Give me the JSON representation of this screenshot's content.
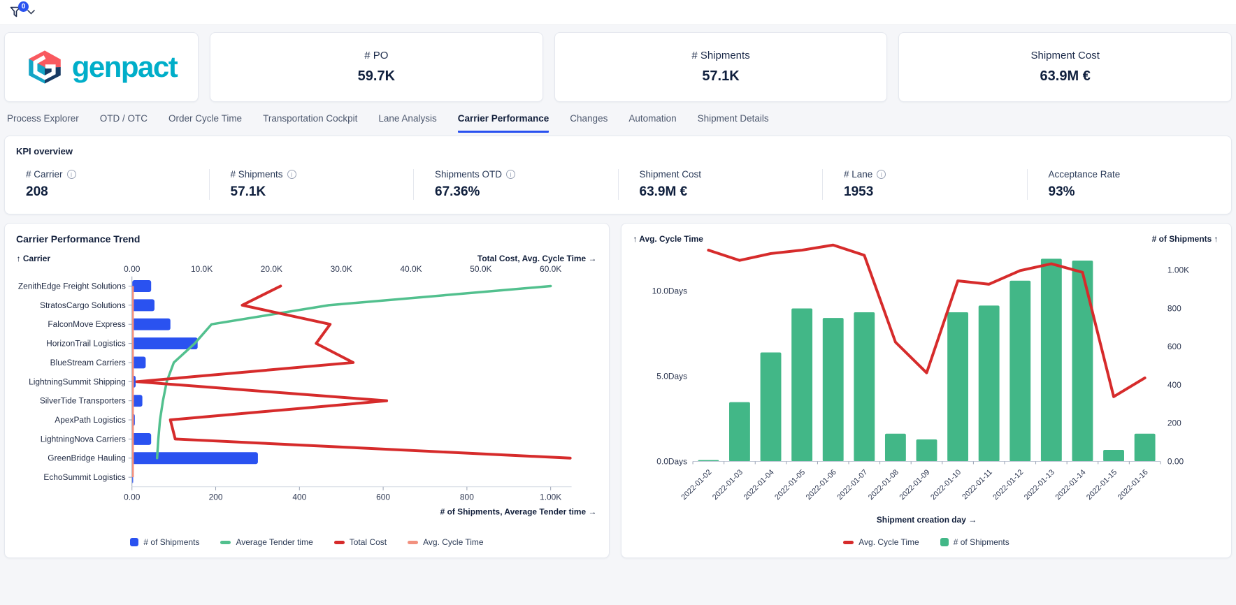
{
  "topbar": {
    "filter_count": "0"
  },
  "brand": {
    "wordmark": "genpact"
  },
  "summary_cards": [
    {
      "label": "# PO",
      "value": "59.7K"
    },
    {
      "label": "# Shipments",
      "value": "57.1K"
    },
    {
      "label": "Shipment Cost",
      "value": "63.9M €"
    }
  ],
  "tabs": {
    "items": [
      "Process Explorer",
      "OTD / OTC",
      "Order Cycle Time",
      "Transportation Cockpit",
      "Lane Analysis",
      "Carrier Performance",
      "Changes",
      "Automation",
      "Shipment Details"
    ],
    "active_index": 5
  },
  "kpi_overview": {
    "title": "KPI overview",
    "items": [
      {
        "label": "# Carrier",
        "value": "208",
        "info": true
      },
      {
        "label": "# Shipments",
        "value": "57.1K",
        "info": true
      },
      {
        "label": "Shipments OTD",
        "value": "67.36%",
        "info": true
      },
      {
        "label": "Shipment Cost",
        "value": "63.9M €",
        "info": false
      },
      {
        "label": "# Lane",
        "value": "1953",
        "info": true
      },
      {
        "label": "Acceptance Rate",
        "value": "93%",
        "info": false
      }
    ]
  },
  "chart_data": [
    {
      "type": "bar",
      "orientation": "horizontal",
      "title": "Carrier Performance Trend",
      "y_axis_title": "↑ Carrier",
      "top_axis_title": "Total Cost, Avg. Cycle Time →",
      "bottom_axis_title": "# of Shipments, Average Tender time →",
      "categories": [
        "ZenithEdge Freight Solutions",
        "StratosCargo Solutions",
        "FalconMove Express",
        "HorizonTrail Logistics",
        "BlueStream Carriers",
        "LightningSummit Shipping",
        "SilverTide Transporters",
        "ApexPath Logistics",
        "LightningNova Carriers",
        "GreenBridge Hauling",
        "EchoSummit Logistics"
      ],
      "top_axis": {
        "tick_labels": [
          "0.00",
          "10.0K",
          "20.0K",
          "30.0K",
          "40.0K",
          "50.0K",
          "60.0K"
        ],
        "tick_values": [
          0,
          10000,
          20000,
          30000,
          40000,
          50000,
          60000
        ],
        "max": 63000
      },
      "bottom_axis": {
        "tick_labels": [
          "0.00",
          "200",
          "400",
          "600",
          "800",
          "1.00K"
        ],
        "tick_values": [
          0,
          200,
          400,
          600,
          800,
          1000
        ],
        "max": 1050
      },
      "series": [
        {
          "name": "# of Shipments",
          "type": "bar",
          "axis": "bottom",
          "color": "#2a52f0",
          "values": [
            45,
            53,
            91,
            156,
            32,
            8,
            24,
            6,
            45,
            300,
            2
          ]
        },
        {
          "name": "Average Tender time",
          "type": "line",
          "axis": "bottom",
          "color": "#52c08e",
          "values": [
            1000,
            470,
            190,
            150,
            100,
            83,
            74,
            67,
            63,
            60,
            null
          ]
        },
        {
          "name": "Total Cost",
          "type": "line",
          "axis": "top",
          "color": "#d62b2b",
          "values": [
            21300,
            15800,
            28400,
            26400,
            31700,
            700,
            36500,
            5500,
            6200,
            62800,
            null
          ]
        },
        {
          "name": "Avg. Cycle Time",
          "type": "line",
          "axis": "top",
          "color": "#f2917f",
          "note": "hugs the zero line of the top axis",
          "values": [
            0,
            0,
            0,
            0,
            0,
            0,
            0,
            0,
            0,
            0,
            0
          ]
        }
      ]
    },
    {
      "type": "bar",
      "orientation": "vertical",
      "left_axis_title": "↑ Avg. Cycle Time",
      "right_axis_title": "# of Shipments ↑",
      "x_axis_title": "Shipment creation day →",
      "categories": [
        "2022-01-02",
        "2022-01-03",
        "2022-01-04",
        "2022-01-05",
        "2022-01-06",
        "2022-01-07",
        "2022-01-08",
        "2022-01-09",
        "2022-01-10",
        "2022-01-11",
        "2022-01-12",
        "2022-01-13",
        "2022-01-14",
        "2022-01-15",
        "2022-01-16"
      ],
      "left_axis": {
        "tick_labels": [
          "0.0Days",
          "5.0Days",
          "10.0Days"
        ],
        "tick_values": [
          0,
          5,
          10
        ],
        "max": 13.4
      },
      "right_axis": {
        "tick_labels": [
          "0.00",
          "200",
          "400",
          "600",
          "800",
          "1.00K"
        ],
        "tick_values": [
          0,
          200,
          400,
          600,
          800,
          1000
        ],
        "max": 1200
      },
      "series": [
        {
          "name": "Avg. Cycle Time",
          "type": "line",
          "axis": "left",
          "color": "#d62b2b",
          "values": [
            12.4,
            11.8,
            12.2,
            12.4,
            12.7,
            12.1,
            7.0,
            5.2,
            10.6,
            10.4,
            11.2,
            11.6,
            11.1,
            3.8,
            4.9
          ]
        },
        {
          "name": "# of Shipments",
          "type": "bar",
          "axis": "right",
          "color": "#42b787",
          "values": [
            7,
            310,
            570,
            800,
            750,
            780,
            145,
            115,
            780,
            815,
            945,
            1060,
            1050,
            60,
            145
          ]
        }
      ]
    }
  ]
}
